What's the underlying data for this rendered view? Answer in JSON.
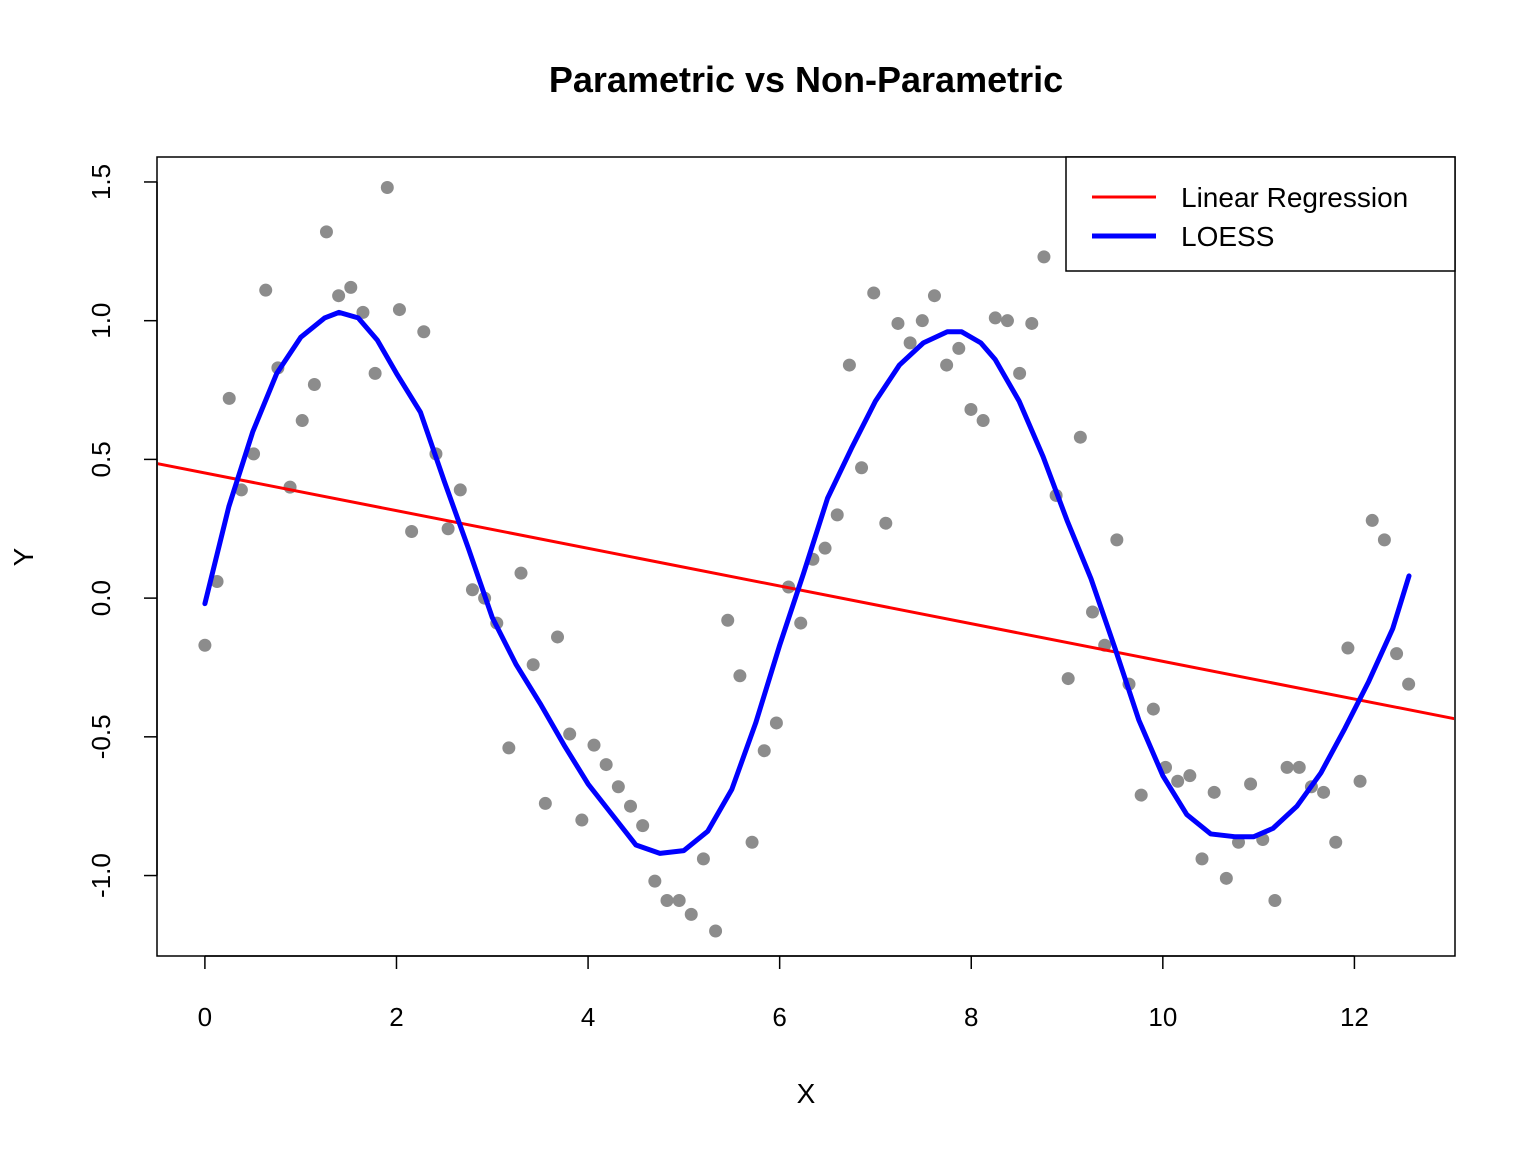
{
  "chart_data": {
    "type": "scatter",
    "title": "Parametric vs Non-Parametric",
    "xlabel": "X",
    "ylabel": "Y",
    "xlim": [
      -0.5,
      13.05
    ],
    "ylim": [
      -1.29,
      1.59
    ],
    "x_ticks": [
      0,
      2,
      4,
      6,
      8,
      10,
      12
    ],
    "x_tick_labels": [
      "0",
      "2",
      "4",
      "6",
      "8",
      "10",
      "12"
    ],
    "y_ticks": [
      -1.0,
      -0.5,
      0.0,
      0.5,
      1.0,
      1.5
    ],
    "y_tick_labels": [
      "-1.0",
      "-0.5",
      "0.0",
      "0.5",
      "1.0",
      "1.5"
    ],
    "grid": false,
    "legend_position": "top-right",
    "colors": {
      "points": "#8c8c8c",
      "linear": "#ff0000",
      "loess": "#0000ff"
    },
    "legend": [
      {
        "label": "Linear Regression",
        "color": "#ff0000"
      },
      {
        "label": "LOESS",
        "color": "#0000ff"
      }
    ],
    "points": {
      "x": [
        0,
        0.127,
        0.254,
        0.381,
        0.508,
        0.635,
        0.762,
        0.889,
        1.016,
        1.143,
        1.269,
        1.396,
        1.523,
        1.65,
        1.777,
        1.904,
        2.031,
        2.158,
        2.285,
        2.412,
        2.539,
        2.666,
        2.793,
        2.92,
        3.047,
        3.173,
        3.3,
        3.427,
        3.554,
        3.681,
        3.808,
        3.935,
        4.062,
        4.189,
        4.316,
        4.443,
        4.57,
        4.697,
        4.824,
        4.951,
        5.077,
        5.204,
        5.331,
        5.458,
        5.585,
        5.712,
        5.839,
        5.966,
        6.093,
        6.22,
        6.347,
        6.474,
        6.601,
        6.728,
        6.855,
        6.982,
        7.108,
        7.235,
        7.362,
        7.489,
        7.616,
        7.743,
        7.87,
        7.997,
        8.124,
        8.251,
        8.378,
        8.505,
        8.632,
        8.759,
        8.886,
        9.012,
        9.139,
        9.266,
        9.393,
        9.52,
        9.647,
        9.774,
        9.901,
        10.028,
        10.155,
        10.282,
        10.409,
        10.536,
        10.663,
        10.79,
        10.916,
        11.043,
        11.17,
        11.297,
        11.424,
        11.551,
        11.678,
        11.805,
        11.932,
        12.059,
        12.186,
        12.313,
        12.44,
        12.566
      ],
      "y": [
        -0.17,
        0.06,
        0.72,
        0.39,
        0.52,
        1.11,
        0.83,
        0.4,
        0.64,
        0.77,
        1.32,
        1.09,
        1.12,
        1.03,
        0.81,
        1.48,
        1.04,
        0.24,
        0.96,
        0.52,
        0.25,
        0.39,
        0.03,
        0.0,
        -0.09,
        -0.54,
        0.09,
        -0.24,
        -0.74,
        -0.14,
        -0.49,
        -0.8,
        -0.53,
        -0.6,
        -0.68,
        -0.75,
        -0.82,
        -1.02,
        -1.09,
        -1.09,
        -1.14,
        -0.94,
        -1.2,
        -0.08,
        -0.28,
        -0.88,
        -0.55,
        -0.45,
        0.04,
        -0.09,
        0.14,
        0.18,
        0.3,
        0.84,
        0.47,
        1.1,
        0.27,
        0.99,
        0.92,
        1.0,
        1.09,
        0.84,
        0.9,
        0.68,
        0.64,
        1.01,
        1.0,
        0.81,
        0.99,
        1.23,
        0.37,
        -0.29,
        0.58,
        -0.05,
        -0.17,
        0.21,
        -0.31,
        -0.71,
        -0.4,
        -0.61,
        -0.66,
        -0.64,
        -0.94,
        -0.7,
        -1.01,
        -0.88,
        -0.67,
        -0.87,
        -1.09,
        -0.61,
        -0.61,
        -0.68,
        -0.7,
        -0.88,
        -0.18,
        -0.66,
        0.28,
        0.21,
        -0.2,
        -0.31
      ]
    },
    "series": [
      {
        "name": "Linear Regression",
        "type": "line",
        "x": [
          -0.5,
          13.05
        ],
        "y": [
          0.485,
          -0.435
        ]
      },
      {
        "name": "LOESS",
        "type": "line",
        "x": [
          0,
          0.25,
          0.5,
          0.75,
          1.0,
          1.25,
          1.4,
          1.6,
          1.8,
          2.0,
          2.25,
          2.5,
          2.75,
          3.0,
          3.25,
          3.5,
          3.75,
          4.0,
          4.25,
          4.5,
          4.75,
          5.0,
          5.25,
          5.5,
          5.75,
          6.0,
          6.25,
          6.5,
          6.75,
          7.0,
          7.25,
          7.5,
          7.75,
          7.9,
          8.1,
          8.25,
          8.5,
          8.75,
          9.0,
          9.25,
          9.5,
          9.75,
          10.0,
          10.25,
          10.5,
          10.75,
          10.95,
          11.15,
          11.4,
          11.65,
          11.9,
          12.15,
          12.4,
          12.57
        ],
        "y": [
          -0.02,
          0.33,
          0.6,
          0.81,
          0.94,
          1.01,
          1.03,
          1.01,
          0.93,
          0.81,
          0.67,
          0.42,
          0.18,
          -0.07,
          -0.24,
          -0.38,
          -0.53,
          -0.67,
          -0.78,
          -0.89,
          -0.92,
          -0.91,
          -0.84,
          -0.69,
          -0.45,
          -0.17,
          0.09,
          0.36,
          0.54,
          0.71,
          0.84,
          0.92,
          0.96,
          0.96,
          0.92,
          0.86,
          0.71,
          0.51,
          0.28,
          0.07,
          -0.18,
          -0.44,
          -0.64,
          -0.78,
          -0.85,
          -0.86,
          -0.86,
          -0.83,
          -0.75,
          -0.63,
          -0.47,
          -0.3,
          -0.11,
          0.08
        ]
      }
    ]
  }
}
